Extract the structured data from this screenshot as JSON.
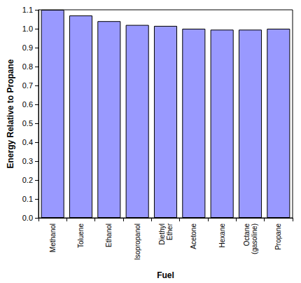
{
  "chart_data": {
    "type": "bar",
    "x_label": "Fuel",
    "y_label": "Energy Relative to Propane",
    "categories": [
      "Methanol",
      "Toluene",
      "Ethanol",
      "Isopropanol",
      "Diethyl Ether",
      "Acetone",
      "Hexane",
      "Octane (gasoline)",
      "Propane"
    ],
    "values": [
      1.1,
      1.07,
      1.04,
      1.02,
      1.015,
      1.0,
      0.995,
      0.995,
      1.0
    ],
    "color": "#9999ff",
    "ylim": [
      0,
      1.1
    ],
    "yticks": [
      {
        "value": 0,
        "label": "0.0"
      },
      0.1,
      0.2,
      0.3,
      0.4,
      0.5,
      0.6,
      0.7,
      0.8,
      0.9,
      {
        "value": 1,
        "label": "1.0"
      },
      1.1
    ],
    "grid": false
  }
}
